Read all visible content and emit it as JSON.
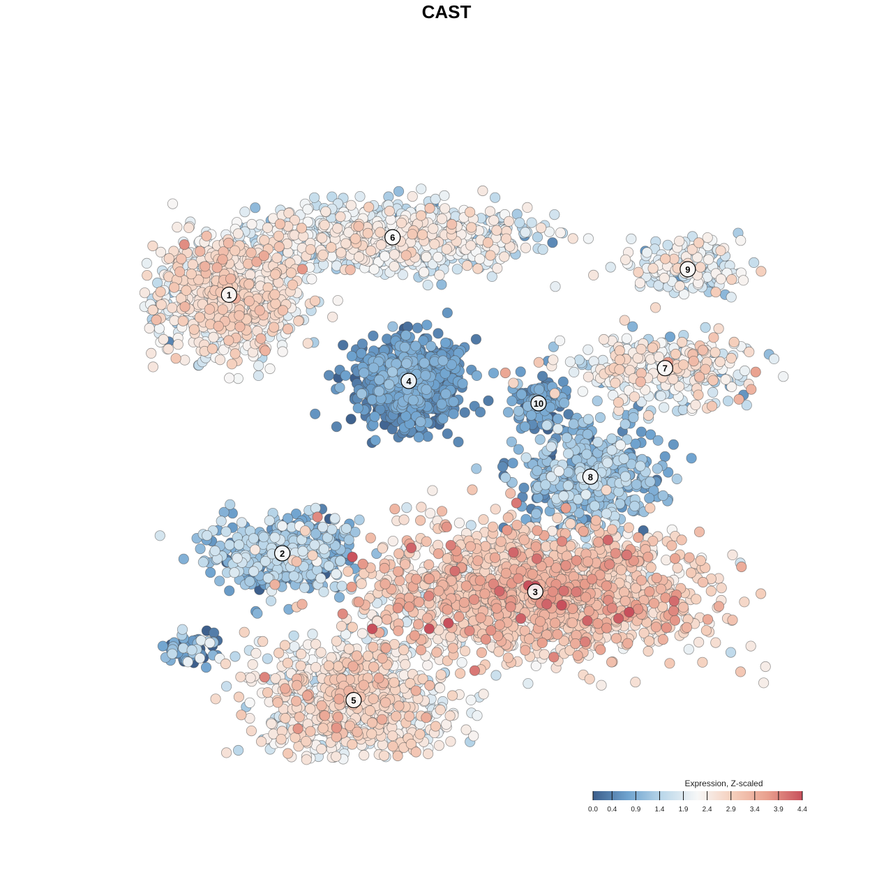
{
  "chart_data": {
    "type": "scatter",
    "title": "CAST",
    "xlabel": "",
    "ylabel": "",
    "xlim": [
      0,
      100
    ],
    "ylim": [
      0,
      100
    ],
    "grid": false,
    "legend": {
      "title": "Expression, Z-scaled",
      "placement": "bottom-right",
      "range": [
        0.0,
        4.4
      ],
      "ticks": [
        "0.0",
        "0.4",
        "0.9",
        "1.4",
        "1.9",
        "2.4",
        "2.9",
        "3.4",
        "3.9",
        "4.4"
      ],
      "colors": [
        "#3d5f8c",
        "#6fa3cf",
        "#bcd8ea",
        "#f7f7f7",
        "#f5cfbc",
        "#e9a08e",
        "#c8505c"
      ]
    },
    "clusters": [
      {
        "label": "1",
        "x": 13.8,
        "y": 73.5,
        "sx": 11.5,
        "sy": 9.5,
        "n": 900,
        "mean": 2.3,
        "sd": 0.45
      },
      {
        "label": "6",
        "x": 39.0,
        "y": 82.5,
        "sx": 21.0,
        "sy": 5.0,
        "n": 900,
        "mean": 1.9,
        "sd": 0.45
      },
      {
        "label": "9",
        "x": 84.5,
        "y": 77.5,
        "sx": 8.5,
        "sy": 4.0,
        "n": 180,
        "mean": 1.9,
        "sd": 0.5
      },
      {
        "label": "7",
        "x": 81.0,
        "y": 62.0,
        "sx": 14.0,
        "sy": 5.0,
        "n": 320,
        "mean": 2.1,
        "sd": 0.55
      },
      {
        "label": "4",
        "x": 41.5,
        "y": 60.0,
        "sx": 8.0,
        "sy": 7.0,
        "n": 700,
        "mean": 0.5,
        "sd": 0.25
      },
      {
        "label": "10",
        "x": 61.5,
        "y": 56.5,
        "sx": 4.0,
        "sy": 4.0,
        "n": 100,
        "mean": 0.6,
        "sd": 0.3
      },
      {
        "label": "8",
        "x": 69.5,
        "y": 45.0,
        "sx": 11.0,
        "sy": 8.0,
        "n": 450,
        "mean": 1.0,
        "sd": 0.4
      },
      {
        "label": "2",
        "x": 22.0,
        "y": 33.0,
        "sx": 11.0,
        "sy": 6.0,
        "n": 420,
        "mean": 1.0,
        "sd": 0.5
      },
      {
        "label": "3",
        "x": 61.0,
        "y": 27.0,
        "sx": 26.0,
        "sy": 10.0,
        "n": 1600,
        "mean": 2.8,
        "sd": 0.5
      },
      {
        "label": "5",
        "x": 33.0,
        "y": 10.0,
        "sx": 14.0,
        "sy": 9.0,
        "n": 900,
        "mean": 2.3,
        "sd": 0.5
      },
      {
        "label": "",
        "x": 7.5,
        "y": 18.0,
        "sx": 6.0,
        "sy": 3.0,
        "n": 60,
        "mean": 1.0,
        "sd": 0.6
      }
    ]
  }
}
